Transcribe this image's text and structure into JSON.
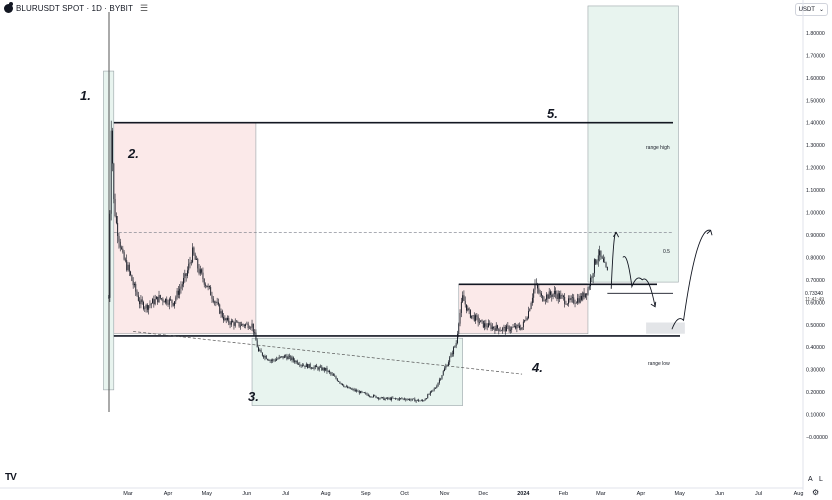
{
  "header": {
    "title": "BLURUSDT SPOT · 1D · BYBIT",
    "menu_icon": "hamburger-icon",
    "currency_label": "USDT",
    "currency_icon": "chevron-down-icon"
  },
  "price_labels": {
    "current_price": "0.73340",
    "countdown": "11:41:49"
  },
  "annotations": {
    "n1": "1.",
    "n2": "2.",
    "n3": "3.",
    "n4": "4.",
    "n5": "5.",
    "range_high": "range high",
    "range_low": "range low",
    "fib": "0.5"
  },
  "footer": {
    "logo": "TV",
    "auto_label": "A",
    "log_label": "L",
    "settings_icon": "gear-icon"
  },
  "colors": {
    "candle": "#131722",
    "red_zone": "#fbe9e9",
    "green_zone": "#e8f4ef",
    "zone_border": "#9aa4a8",
    "grey_box": "#e3e5e8"
  },
  "chart_data": {
    "type": "candlestick",
    "y_axis": {
      "min": -0.1,
      "max": 1.9,
      "ticks": [
        1.8,
        1.7,
        1.6,
        1.5,
        1.4,
        1.3,
        1.2,
        1.1,
        1.0,
        0.9,
        0.8,
        0.7,
        0.6,
        0.5,
        0.4,
        0.3,
        0.2,
        0.1,
        0.0
      ],
      "tick_labels": [
        "1.80000",
        "1.70000",
        "1.60000",
        "1.50000",
        "1.40000",
        "1.30000",
        "1.20000",
        "1.10000",
        "1.00000",
        "0.90000",
        "0.80000",
        "0.70000",
        "0.60000",
        "0.50000",
        "0.40000",
        "0.30000",
        "0.20000",
        "0.10000",
        "−0.00000"
      ]
    },
    "x_axis": {
      "labels": [
        "Mar",
        "Apr",
        "May",
        "Jun",
        "Jul",
        "Aug",
        "Sep",
        "Oct",
        "Nov",
        "Dec",
        "2024",
        "Feb",
        "Mar",
        "Apr",
        "May",
        "Jun",
        "Jul",
        "Aug"
      ],
      "label_dates": [
        "2023-03-01",
        "2023-04-01",
        "2023-05-01",
        "2023-06-01",
        "2023-07-01",
        "2023-08-01",
        "2023-09-01",
        "2023-10-01",
        "2023-11-01",
        "2023-12-01",
        "2024-01-01",
        "2024-02-01",
        "2024-03-01",
        "2024-04-01",
        "2024-05-01",
        "2024-06-01",
        "2024-07-01",
        "2024-08-01"
      ]
    },
    "price_path": [
      [
        "2023-02-14",
        0.62
      ],
      [
        "2023-02-16",
        1.4
      ],
      [
        "2023-02-18",
        1.05
      ],
      [
        "2023-02-20",
        0.95
      ],
      [
        "2023-02-25",
        0.8
      ],
      [
        "2023-03-01",
        0.75
      ],
      [
        "2023-03-05",
        0.68
      ],
      [
        "2023-03-10",
        0.6
      ],
      [
        "2023-03-15",
        0.58
      ],
      [
        "2023-03-25",
        0.62
      ],
      [
        "2023-04-05",
        0.6
      ],
      [
        "2023-04-15",
        0.72
      ],
      [
        "2023-04-20",
        0.82
      ],
      [
        "2023-04-25",
        0.74
      ],
      [
        "2023-05-05",
        0.63
      ],
      [
        "2023-05-15",
        0.52
      ],
      [
        "2023-05-25",
        0.5
      ],
      [
        "2023-06-05",
        0.5
      ],
      [
        "2023-06-10",
        0.38
      ],
      [
        "2023-06-20",
        0.34
      ],
      [
        "2023-07-01",
        0.36
      ],
      [
        "2023-07-15",
        0.32
      ],
      [
        "2023-08-01",
        0.3
      ],
      [
        "2023-08-17",
        0.22
      ],
      [
        "2023-09-01",
        0.19
      ],
      [
        "2023-09-15",
        0.17
      ],
      [
        "2023-10-01",
        0.17
      ],
      [
        "2023-10-15",
        0.16
      ],
      [
        "2023-10-25",
        0.22
      ],
      [
        "2023-11-05",
        0.35
      ],
      [
        "2023-11-10",
        0.42
      ],
      [
        "2023-11-12",
        0.52
      ],
      [
        "2023-11-15",
        0.62
      ],
      [
        "2023-11-20",
        0.55
      ],
      [
        "2023-12-01",
        0.5
      ],
      [
        "2023-12-15",
        0.48
      ],
      [
        "2023-12-31",
        0.49
      ],
      [
        "2024-01-05",
        0.56
      ],
      [
        "2024-01-10",
        0.68
      ],
      [
        "2024-01-15",
        0.62
      ],
      [
        "2024-01-25",
        0.64
      ],
      [
        "2024-02-05",
        0.6
      ],
      [
        "2024-02-15",
        0.62
      ],
      [
        "2024-02-20",
        0.66
      ],
      [
        "2024-02-25",
        0.77
      ],
      [
        "2024-02-28",
        0.82
      ],
      [
        "2024-03-02",
        0.78
      ],
      [
        "2024-03-06",
        0.73
      ]
    ],
    "levels": {
      "range_high": 1.4,
      "range_low": 0.45,
      "fib_0_5": 0.91,
      "resistance": 0.68,
      "support_short": 0.64
    },
    "zones": [
      {
        "label": "1.",
        "color": "green",
        "from": "2023-02-10",
        "to": "2023-02-18",
        "top": 1.63,
        "bottom": 0.21
      },
      {
        "label": "2.",
        "color": "red",
        "from": "2023-02-18",
        "to": "2023-06-08",
        "top": 1.4,
        "bottom": 0.46
      },
      {
        "label": "3.",
        "color": "green",
        "from": "2023-06-05",
        "to": "2023-11-15",
        "top": 0.44,
        "bottom": 0.14
      },
      {
        "label": "4.",
        "color": "red",
        "from": "2023-11-12",
        "to": "2024-02-20",
        "top": 0.68,
        "bottom": 0.46
      },
      {
        "label": "5.",
        "color": "green",
        "from": "2024-02-20",
        "to": "2024-04-30",
        "top": 1.92,
        "bottom": 0.69
      },
      {
        "label": "",
        "color": "grey",
        "from": "2024-04-05",
        "to": "2024-05-05",
        "top": 0.51,
        "bottom": 0.46
      }
    ],
    "trendline": {
      "from": [
        "2023-03-05",
        0.47
      ],
      "to": [
        "2023-12-31",
        0.28
      ]
    },
    "projection_paths": [
      [
        [
          "2024-03-09",
          0.66
        ],
        [
          "2024-03-13",
          0.91
        ]
      ],
      [
        [
          "2024-03-18",
          0.8
        ],
        [
          "2024-03-25",
          0.67
        ],
        [
          "2024-04-02",
          0.7
        ],
        [
          "2024-04-12",
          0.58
        ]
      ],
      [
        [
          "2024-04-25",
          0.48
        ],
        [
          "2024-05-04",
          0.52
        ],
        [
          "2024-05-25",
          0.92
        ]
      ]
    ]
  }
}
